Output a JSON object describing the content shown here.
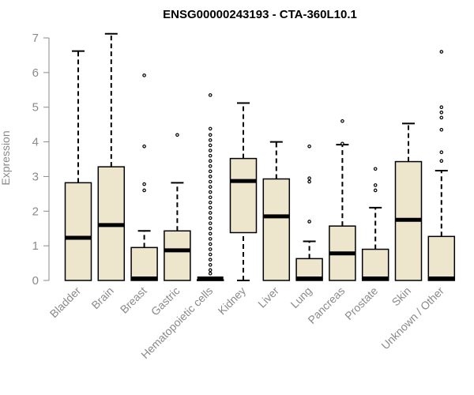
{
  "chart_data": {
    "type": "boxplot",
    "title": "ENSG00000243193 - CTA-360L10.1",
    "xlabel": "",
    "ylabel": "Expression",
    "ylim": [
      0,
      7
    ],
    "yticks": [
      0,
      1,
      2,
      3,
      4,
      5,
      6,
      7
    ],
    "box_color": "#ede6cc",
    "categories": [
      "Bladder",
      "Brain",
      "Breast",
      "Gastric",
      "Hematopoietic cells",
      "Kidney",
      "Liver",
      "Lung",
      "Pancreas",
      "Prostate",
      "Skin",
      "Unknown / Other"
    ],
    "boxes": [
      {
        "category": "Bladder",
        "min": 0,
        "q1": 0,
        "median": 1.23,
        "q3": 2.82,
        "max": 6.62,
        "outliers": []
      },
      {
        "category": "Brain",
        "min": 0,
        "q1": 0,
        "median": 1.6,
        "q3": 3.28,
        "max": 7.12,
        "outliers": []
      },
      {
        "category": "Breast",
        "min": 0,
        "q1": 0,
        "median": 0.02,
        "q3": 0.95,
        "max": 1.43,
        "outliers": [
          2.6,
          2.78,
          3.87,
          5.92
        ]
      },
      {
        "category": "Gastric",
        "min": 0,
        "q1": 0,
        "median": 0.87,
        "q3": 1.43,
        "max": 2.82,
        "outliers": [
          4.2
        ]
      },
      {
        "category": "Hematopoietic cells",
        "min": 0,
        "q1": 0,
        "median": 0.02,
        "q3": 0.02,
        "max": 0.05,
        "outliers": [
          0.2,
          0.3,
          0.45,
          0.6,
          0.75,
          0.9,
          1.05,
          1.2,
          1.35,
          1.5,
          1.65,
          1.8,
          1.95,
          2.1,
          2.25,
          2.4,
          2.55,
          2.7,
          2.85,
          3.0,
          3.15,
          3.3,
          3.45,
          3.6,
          3.75,
          3.9,
          4.05,
          4.2,
          4.38,
          5.35
        ]
      },
      {
        "category": "Kidney",
        "min": 0,
        "q1": 1.38,
        "median": 2.87,
        "q3": 3.52,
        "max": 5.12,
        "outliers": []
      },
      {
        "category": "Liver",
        "min": 0,
        "q1": 0,
        "median": 1.85,
        "q3": 2.93,
        "max": 4.0,
        "outliers": []
      },
      {
        "category": "Lung",
        "min": 0,
        "q1": 0,
        "median": 0.02,
        "q3": 0.63,
        "max": 1.13,
        "outliers": [
          1.7,
          2.85,
          2.95,
          3.87
        ]
      },
      {
        "category": "Pancreas",
        "min": 0,
        "q1": 0,
        "median": 0.78,
        "q3": 1.57,
        "max": 3.92,
        "outliers": [
          3.95,
          4.6
        ]
      },
      {
        "category": "Prostate",
        "min": 0,
        "q1": 0,
        "median": 0.02,
        "q3": 0.9,
        "max": 2.1,
        "outliers": [
          2.6,
          2.75,
          3.22
        ]
      },
      {
        "category": "Skin",
        "min": 0,
        "q1": 0,
        "median": 1.75,
        "q3": 3.43,
        "max": 4.53,
        "outliers": []
      },
      {
        "category": "Unknown / Other",
        "min": 0,
        "q1": 0,
        "median": 0.02,
        "q3": 1.27,
        "max": 3.17,
        "outliers": [
          3.45,
          3.7,
          4.35,
          4.7,
          4.85,
          5.0,
          6.6
        ]
      }
    ]
  }
}
